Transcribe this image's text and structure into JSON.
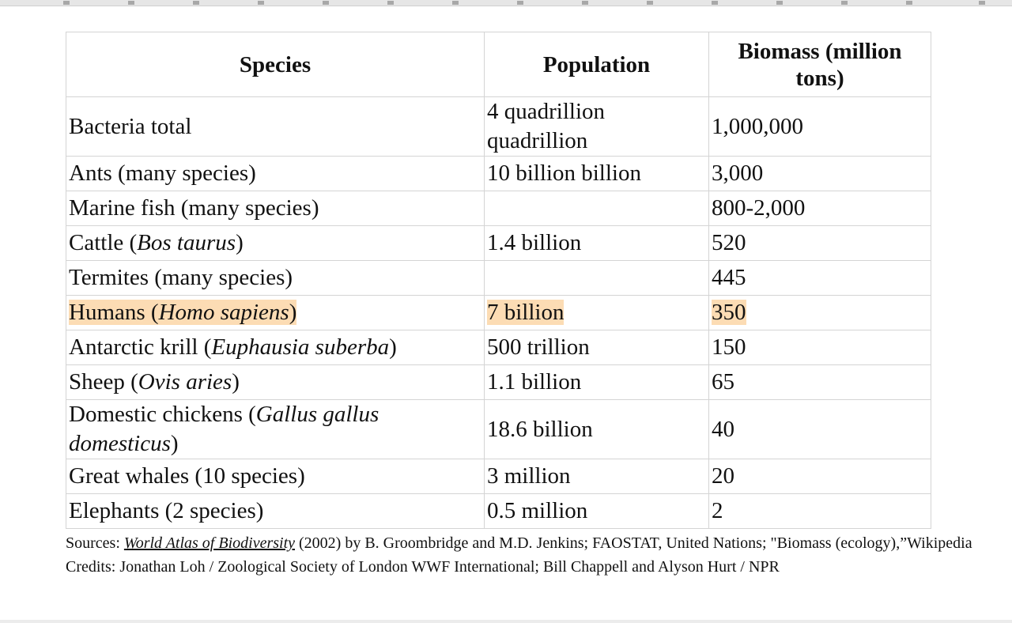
{
  "table": {
    "headers": [
      "Species",
      "Population",
      "Biomass (million tons)"
    ],
    "rows": [
      {
        "species": "Bacteria total",
        "sci": "",
        "suffix": "",
        "population": "4 quadrillion quadrillion",
        "biomass": "1,000,000"
      },
      {
        "species": "Ants (many species)",
        "sci": "",
        "suffix": "",
        "population": "10 billion billion",
        "biomass": "3,000"
      },
      {
        "species": "Marine fish (many species)",
        "sci": "",
        "suffix": "",
        "population": "",
        "biomass": "800-2,000"
      },
      {
        "species": "Cattle (",
        "sci": "Bos taurus",
        "suffix": ")",
        "population": "1.4 billion",
        "biomass": "520"
      },
      {
        "species": "Termites (many species)",
        "sci": "",
        "suffix": "",
        "population": "",
        "biomass": "445"
      },
      {
        "species": "Humans (",
        "sci": "Homo sapiens",
        "suffix": ")",
        "population": "7 billion",
        "biomass": "350",
        "highlighted": true
      },
      {
        "species": "Antarctic krill (",
        "sci": "Euphausia suberba",
        "suffix": ")",
        "population": "500 trillion",
        "biomass": "150"
      },
      {
        "species": "Sheep (",
        "sci": "Ovis aries",
        "suffix": ")",
        "population": "1.1 billion",
        "biomass": "65"
      },
      {
        "species": "Domestic chickens (",
        "sci": "Gallus gallus domesticus",
        "suffix": ")",
        "population": "18.6 billion",
        "biomass": "40"
      },
      {
        "species": "Great whales (10 species)",
        "sci": "",
        "suffix": "",
        "population": "3 million",
        "biomass": "20"
      },
      {
        "species": "Elephants (2 species)",
        "sci": "",
        "suffix": "",
        "population": "0.5 million",
        "biomass": "2"
      }
    ]
  },
  "sources": {
    "prefix": "Sources: ",
    "book": "World Atlas of Biodiversity",
    "rest": " (2002) by B. Groombridge and M.D. Jenkins; FAOSTAT, United Nations; \"Biomass (ecology),”Wikipedia Credits: Jonathan Loh / Zoological Society of London WWF International; Bill Chappell and Alyson Hurt / NPR"
  },
  "colors": {
    "highlight": "#fcdcb4",
    "grid": "#d4d4d4"
  }
}
